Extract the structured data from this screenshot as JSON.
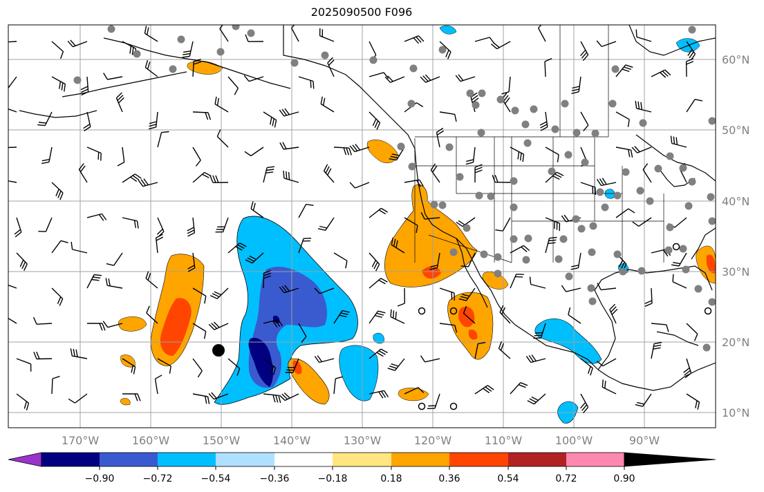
{
  "title": "2025090500 F096",
  "axes": {
    "lon_ticks": [
      "170°W",
      "160°W",
      "150°W",
      "140°W",
      "130°W",
      "120°W",
      "110°W",
      "100°W",
      "90°W"
    ],
    "lat_ticks": [
      "60°N",
      "50°N",
      "40°N",
      "30°N",
      "20°N",
      "10°N"
    ]
  },
  "colorbar": {
    "tick_labels": [
      "−0.90",
      "−0.72",
      "−0.54",
      "−0.36",
      "−0.18",
      "0.18",
      "0.36",
      "0.54",
      "0.72",
      "0.90"
    ],
    "colors": [
      "#9933cc",
      "#000080",
      "#3a5bd0",
      "#00bfff",
      "#b0e0ff",
      "#ffffff",
      "#ffe680",
      "#ffa500",
      "#ff4500",
      "#b22222",
      "#ff88b0"
    ]
  },
  "colors": {
    "coast": "#000000",
    "grid": "#a0a0a0",
    "stations": "#808080",
    "tick_label": "#808080"
  }
}
